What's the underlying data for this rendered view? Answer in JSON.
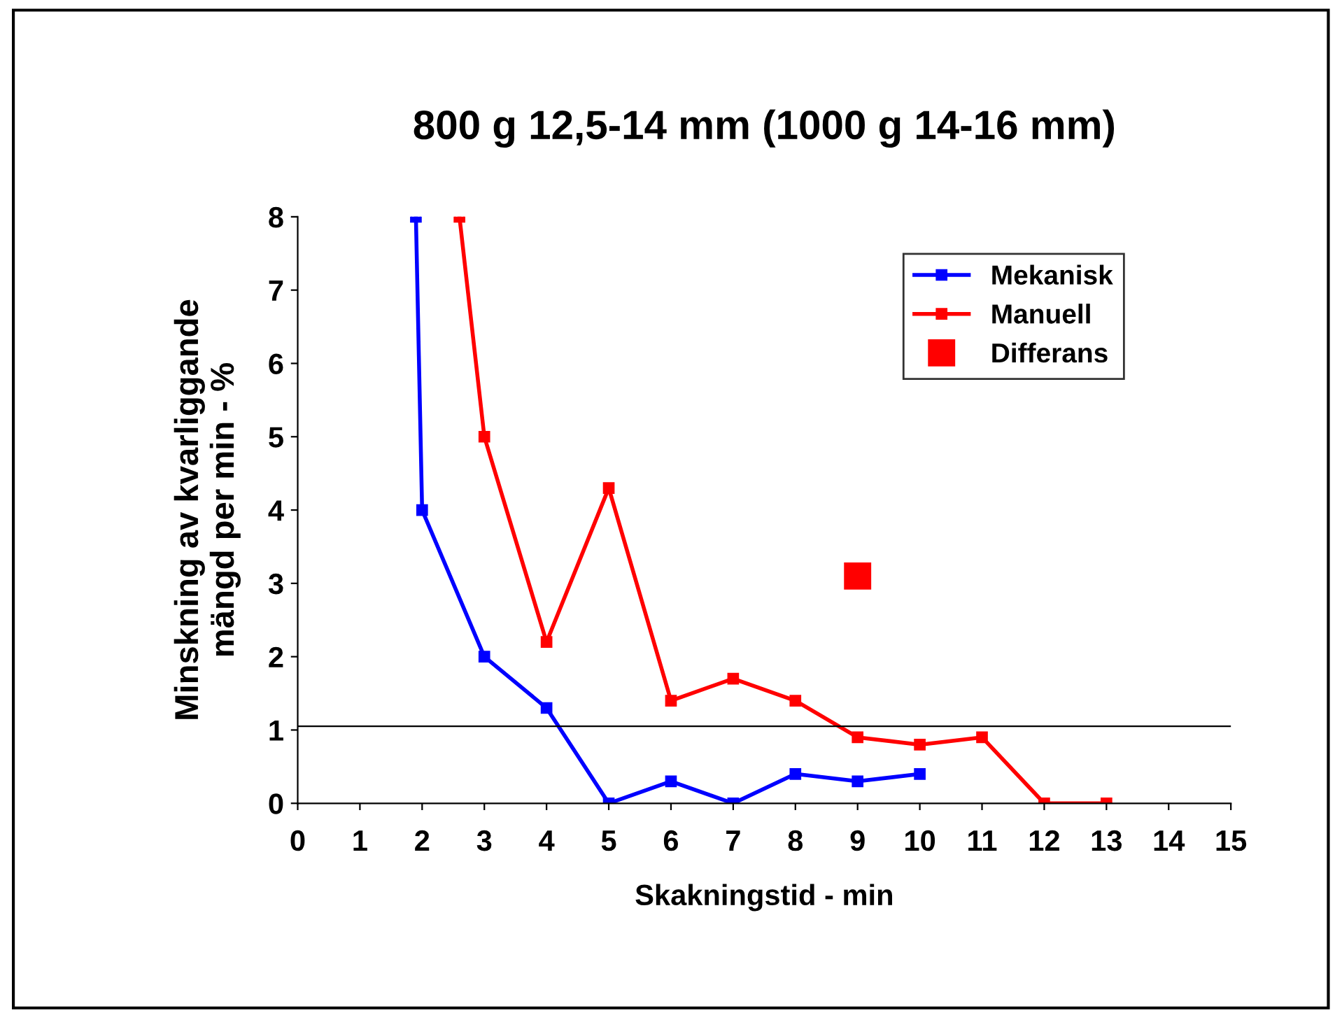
{
  "chart_data": {
    "type": "line",
    "title": "800 g 12,5-14 mm (1000 g 14-16 mm)",
    "xlabel": "Skakningstid - min",
    "ylabel": "Minskning av kvarliggande\nmängd per min - %",
    "xlim": [
      0,
      15
    ],
    "xticks": [
      0,
      1,
      2,
      3,
      4,
      5,
      6,
      7,
      8,
      9,
      10,
      11,
      12,
      13,
      14,
      15
    ],
    "ylim": [
      0,
      8
    ],
    "yticks": [
      0,
      1,
      2,
      3,
      4,
      5,
      6,
      7,
      8
    ],
    "grid": false,
    "legend": "top right",
    "marker": "square",
    "line_style": "solid",
    "ref_lines": [
      {
        "axis": "y",
        "value": 1.05,
        "color": "#000000"
      }
    ],
    "series": [
      {
        "name": "Mekanisk",
        "color": "#0000ff",
        "x": [
          1.9,
          2,
          3,
          4,
          5,
          6,
          7,
          8,
          9,
          10
        ],
        "values": [
          8,
          4,
          2,
          1.3,
          0,
          0.3,
          0,
          0.4,
          0.3,
          0.4
        ]
      },
      {
        "name": "Manuell",
        "color": "#ff0000",
        "x": [
          2.6,
          3,
          4,
          5,
          6,
          7,
          8,
          9,
          10,
          11,
          12,
          13
        ],
        "values": [
          8,
          5,
          2.2,
          4.3,
          1.4,
          1.7,
          1.4,
          0.9,
          0.8,
          0.9,
          0,
          0
        ]
      },
      {
        "name": "Differans",
        "type": "scatter",
        "color": "#ff0000",
        "x": [
          9
        ],
        "values": [
          3.1
        ]
      }
    ]
  }
}
